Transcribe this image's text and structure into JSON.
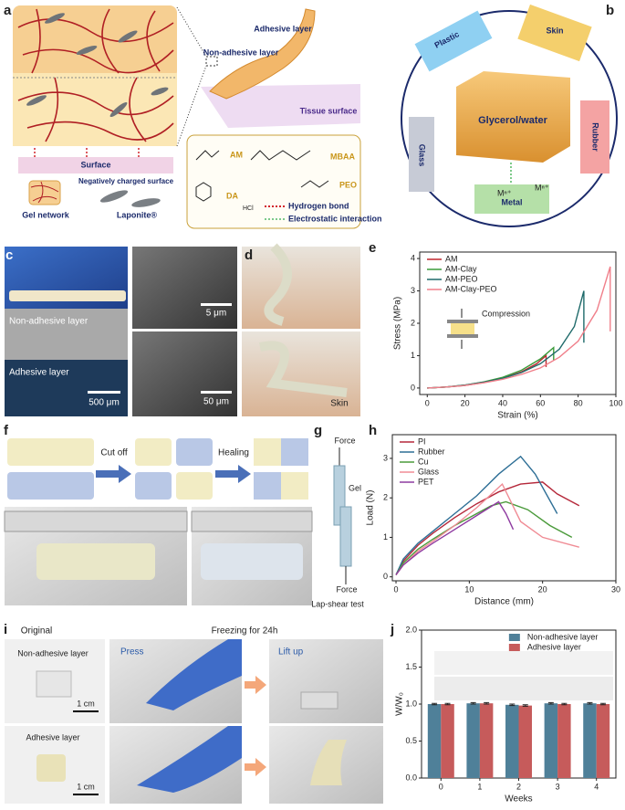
{
  "panels": {
    "a": {
      "label": "a",
      "non_adhesive": "Non-adhesive layer",
      "adhesive": "Adhesive layer",
      "tissue": "Tissue surface",
      "surface": "Surface",
      "gel_network": "Gel network",
      "charged": "Negatively charged surface",
      "laponite": "Laponite®",
      "legend": {
        "am": "AM",
        "mbaa": "MBAA",
        "da": "DA",
        "peo": "PEO",
        "hcl": "HCl",
        "hbond": "Hydrogen bond",
        "electro": "Electrostatic interaction"
      }
    },
    "b": {
      "label": "b",
      "plastic": "Plastic",
      "skin": "Skin",
      "center": "Glycerol/water",
      "glass": "Glass",
      "rubber": "Rubber",
      "metal": "Metal",
      "ion_left": "Mⁿ⁺",
      "ion_right": "Mⁿ⁺"
    },
    "c": {
      "label": "c",
      "non_adhesive": "Non-adhesive layer",
      "adhesive": "Adhesive layer",
      "scale_main": "500 μm",
      "scale_top": "5 μm",
      "scale_bottom": "50 μm"
    },
    "d": {
      "label": "d",
      "skin": "Skin"
    },
    "f": {
      "label": "f",
      "cut": "Cut off",
      "healing": "Healing"
    },
    "g": {
      "label": "g",
      "force_top": "Force",
      "gel": "Gel",
      "force_bottom": "Force",
      "caption": "Lap-shear test"
    },
    "i": {
      "label": "i",
      "original": "Original",
      "freezing": "Freezing for 24h",
      "non_adhesive": "Non-adhesive layer",
      "scale_top": "1 cm",
      "adhesive": "Adhesive layer",
      "scale_bottom": "1 cm",
      "press": "Press",
      "lift": "Lift up"
    }
  },
  "chart_data": [
    {
      "type": "line",
      "label": "e",
      "xlabel": "Strain (%)",
      "ylabel": "Stress (MPa)",
      "annotation": "Compression",
      "xlim": [
        -4,
        100
      ],
      "ylim": [
        -0.2,
        4.2
      ],
      "xticks": [
        0,
        20,
        40,
        60,
        80,
        100
      ],
      "yticks": [
        0,
        1,
        2,
        3,
        4
      ],
      "legend": "upper left",
      "series": [
        {
          "name": "AM",
          "color": "#c0272d",
          "x": [
            0,
            10,
            20,
            30,
            40,
            50,
            58,
            63,
            63
          ],
          "values": [
            0,
            0.03,
            0.08,
            0.17,
            0.3,
            0.5,
            0.75,
            1.0,
            0.65
          ]
        },
        {
          "name": "AM-Clay",
          "color": "#3a9a3a",
          "x": [
            0,
            10,
            20,
            30,
            40,
            50,
            60,
            67,
            67
          ],
          "values": [
            0,
            0.03,
            0.09,
            0.19,
            0.33,
            0.55,
            0.9,
            1.25,
            0.85
          ]
        },
        {
          "name": "AM-PEO",
          "color": "#1f6a6a",
          "x": [
            0,
            10,
            20,
            30,
            40,
            50,
            60,
            70,
            78,
            83,
            83
          ],
          "values": [
            0,
            0.03,
            0.09,
            0.18,
            0.3,
            0.48,
            0.75,
            1.2,
            1.9,
            3.0,
            1.4
          ]
        },
        {
          "name": "AM-Clay-PEO",
          "color": "#f07f8a",
          "x": [
            0,
            10,
            20,
            30,
            40,
            50,
            60,
            70,
            80,
            90,
            97,
            97
          ],
          "values": [
            0,
            0.03,
            0.08,
            0.16,
            0.27,
            0.42,
            0.62,
            0.95,
            1.45,
            2.4,
            3.75,
            1.75
          ]
        }
      ]
    },
    {
      "type": "line",
      "label": "h",
      "xlabel": "Distance (mm)",
      "ylabel": "Load (N)",
      "xlim": [
        -0.5,
        30
      ],
      "ylim": [
        -0.1,
        3.6
      ],
      "xticks": [
        0,
        10,
        20,
        30
      ],
      "yticks": [
        0,
        1,
        2,
        3
      ],
      "legend": "upper left",
      "series": [
        {
          "name": "PI",
          "color": "#b5283a",
          "x": [
            0,
            1,
            3,
            5,
            8,
            11,
            14,
            17,
            20,
            22,
            25
          ],
          "values": [
            0.05,
            0.4,
            0.8,
            1.1,
            1.5,
            1.85,
            2.15,
            2.35,
            2.4,
            2.1,
            1.8
          ]
        },
        {
          "name": "Rubber",
          "color": "#2e6f96",
          "x": [
            0,
            1,
            3,
            5,
            8,
            11,
            14,
            17,
            19,
            22
          ],
          "values": [
            0.05,
            0.45,
            0.85,
            1.15,
            1.6,
            2.05,
            2.6,
            3.05,
            2.6,
            1.6
          ]
        },
        {
          "name": "Cu",
          "color": "#4a9a3a",
          "x": [
            0,
            1,
            3,
            5,
            8,
            11,
            13,
            15,
            18,
            21,
            24
          ],
          "values": [
            0.05,
            0.35,
            0.7,
            0.95,
            1.3,
            1.6,
            1.8,
            1.9,
            1.7,
            1.3,
            1.0
          ]
        },
        {
          "name": "Glass",
          "color": "#f08c95",
          "x": [
            0,
            1,
            3,
            5,
            8,
            11,
            14.5,
            17,
            20,
            25
          ],
          "values": [
            0.05,
            0.3,
            0.65,
            0.9,
            1.3,
            1.75,
            2.35,
            1.4,
            1.0,
            0.75
          ]
        },
        {
          "name": "PET",
          "color": "#8e3aa0",
          "x": [
            0,
            1,
            3,
            5,
            8,
            11,
            14,
            15,
            16
          ],
          "values": [
            0.05,
            0.3,
            0.6,
            0.85,
            1.2,
            1.55,
            1.9,
            1.6,
            1.2
          ]
        }
      ]
    },
    {
      "type": "bar",
      "label": "j",
      "xlabel": "Weeks",
      "ylabel": "W/W₀",
      "categories": [
        "0",
        "1",
        "2",
        "3",
        "4"
      ],
      "ylim": [
        0,
        2.0
      ],
      "yticks": [
        {
          "value": 0,
          "label": "0.0"
        },
        0.5,
        {
          "value": 1,
          "label": "1.0"
        },
        1.5,
        {
          "value": 2,
          "label": "2.0"
        }
      ],
      "legend": "upper right",
      "series": [
        {
          "name": "Non-adhesive layer",
          "color": "#4f8099",
          "values": [
            1.0,
            1.01,
            0.99,
            1.01,
            1.01
          ],
          "errors": [
            0.01,
            0.01,
            0.01,
            0.01,
            0.01
          ]
        },
        {
          "name": "Adhesive layer",
          "color": "#c65b5b",
          "values": [
            1.0,
            1.01,
            0.98,
            1.0,
            1.0
          ],
          "errors": [
            0.01,
            0.01,
            0.01,
            0.01,
            0.01
          ]
        }
      ]
    }
  ]
}
